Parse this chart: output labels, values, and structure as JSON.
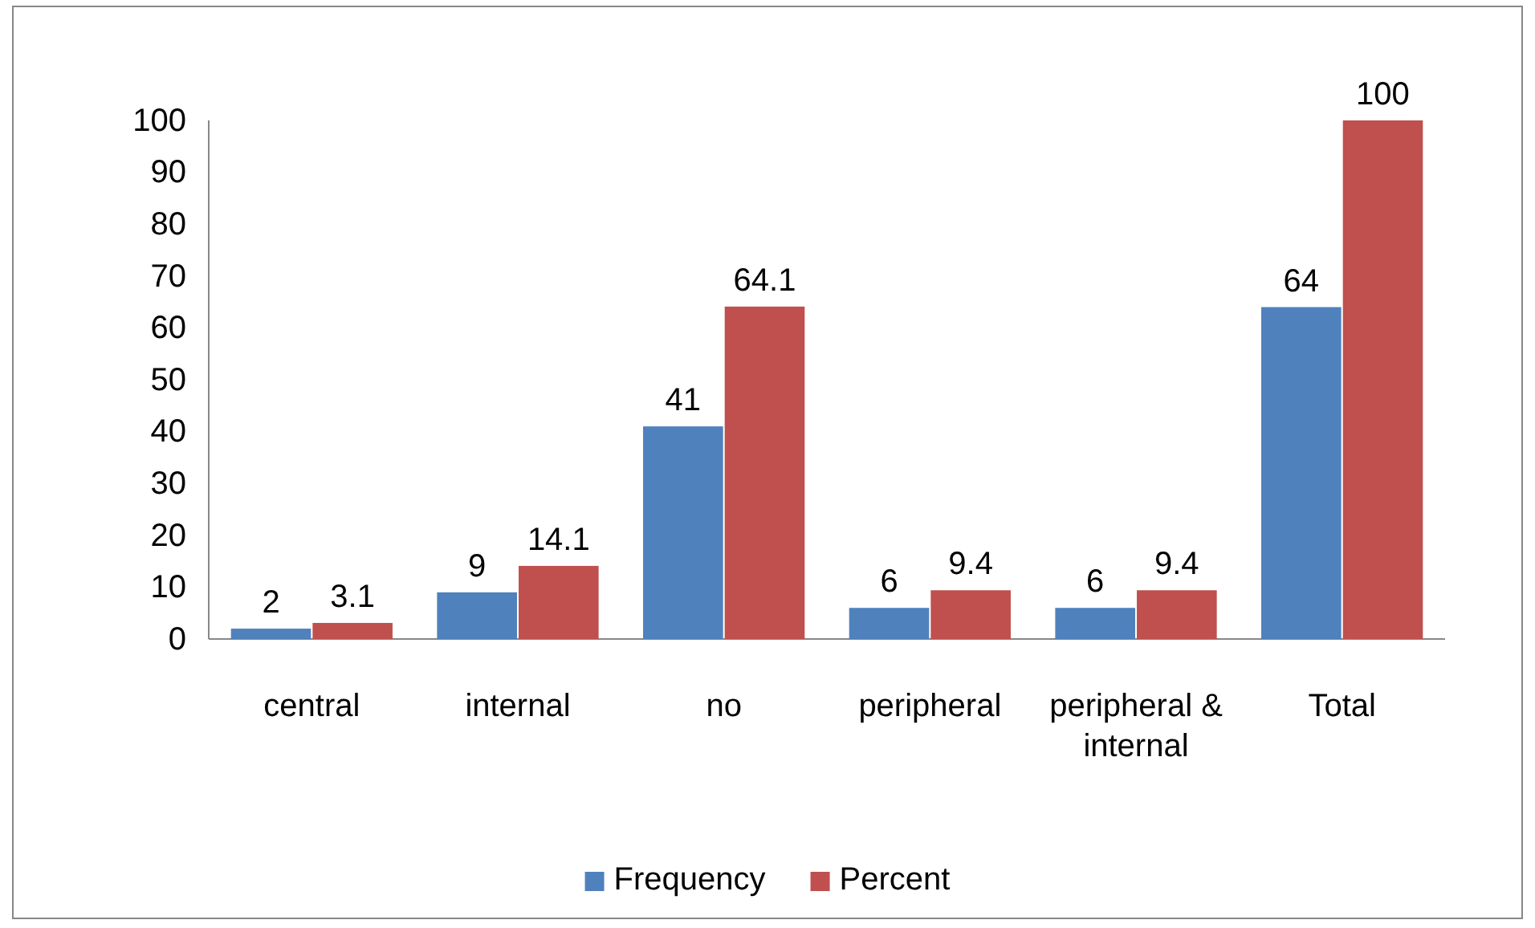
{
  "chart_data": {
    "type": "bar",
    "categories": [
      "central",
      "internal",
      "no",
      "peripheral",
      "peripheral & internal",
      "Total"
    ],
    "series": [
      {
        "name": "Frequency",
        "color": "#4f81bd",
        "values": [
          2,
          9,
          41,
          6,
          6,
          64
        ]
      },
      {
        "name": "Percent",
        "color": "#c0504d",
        "values": [
          3.1,
          14.1,
          64.1,
          9.4,
          9.4,
          100
        ]
      }
    ],
    "ylim": [
      0,
      100
    ],
    "yticks": [
      0,
      10,
      20,
      30,
      40,
      50,
      60,
      70,
      80,
      90,
      100
    ],
    "data_labels": true,
    "legend": "bottom",
    "grid": false
  }
}
